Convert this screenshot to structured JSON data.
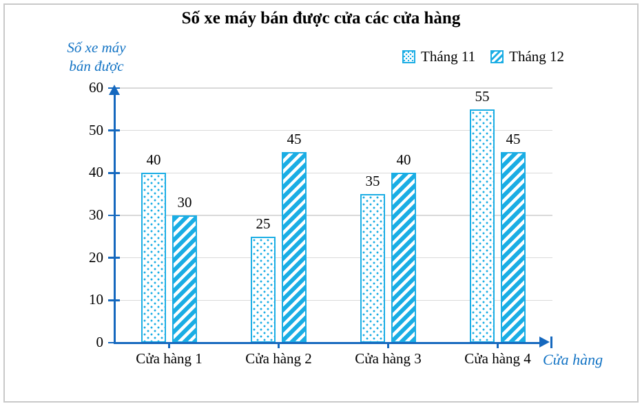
{
  "chart_data": {
    "type": "bar",
    "title": "Số xe máy bán được cửa các cửa hàng",
    "ylabel": "Số xe máy bán được",
    "ylabel_lines": [
      "Số xe máy",
      "bán được"
    ],
    "xlabel": "Cửa hàng",
    "categories": [
      "Cửa hàng 1",
      "Cửa hàng 2",
      "Cửa hàng 3",
      "Cửa hàng 4"
    ],
    "series": [
      {
        "name": "Tháng 11",
        "pattern": "dots",
        "values": [
          40,
          25,
          35,
          55
        ]
      },
      {
        "name": "Tháng 12",
        "pattern": "hatch",
        "values": [
          30,
          45,
          40,
          45
        ]
      }
    ],
    "ylim": [
      0,
      60
    ],
    "ytick_step": 10,
    "grid": true,
    "data_labels": true,
    "legend_position": "top-right",
    "colors": {
      "bar_cyan": "#1AADE4",
      "axis_blue": "#1568BE",
      "label_blue": "#1273C4",
      "gridline": "#D9D9D9",
      "frame": "#C9C9C9",
      "text": "#000000"
    }
  }
}
